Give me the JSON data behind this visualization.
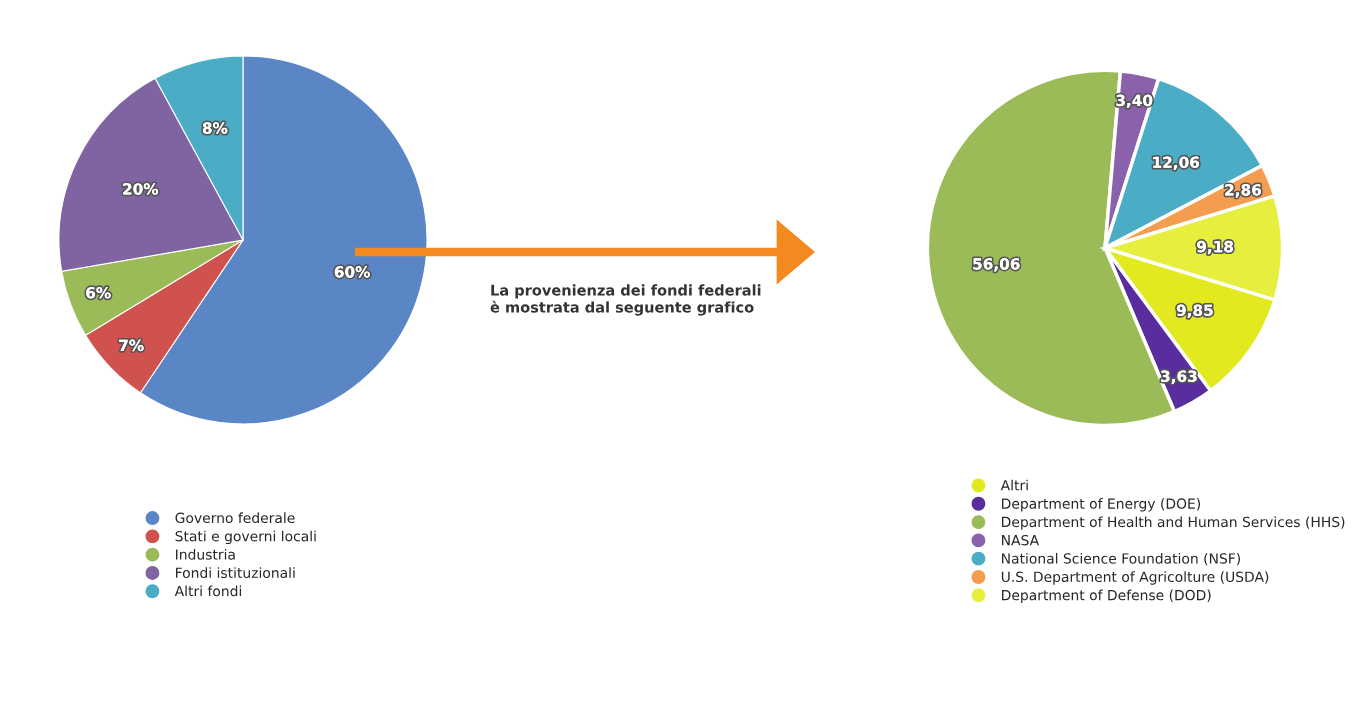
{
  "chart_data": [
    {
      "type": "pie",
      "categories": [
        "Governo federale",
        "Stati e governi locali",
        "Industria",
        "Fondi istituzionali",
        "Altri fondi"
      ],
      "values": [
        60,
        7,
        6,
        20,
        8
      ],
      "value_labels": [
        "60%",
        "7%",
        "6%",
        "20%",
        "8%"
      ],
      "colors": [
        "#5b86c5",
        "#d0524e",
        "#9bbb59",
        "#8064a2",
        "#4bacc6"
      ],
      "legend": "bottom",
      "annotations": [
        "La provenienza dei fondi federali\nè mostrata dal seguente grafico"
      ]
    },
    {
      "type": "pie",
      "categories": [
        "Altri",
        "Department of Energy (DOE)",
        "Department of Health and Human Services (HHS)",
        "NASA",
        "National Science Foundation (NSF)",
        "U.S. Department of Agricolture (USDA)",
        "Department of Defense (DOD)"
      ],
      "values": [
        9.85,
        3.63,
        56.06,
        3.4,
        12.06,
        2.86,
        9.18
      ],
      "value_labels": [
        "9,85",
        "3,63",
        "56,06",
        "3,40",
        "12,06",
        "2,86",
        "9,18"
      ],
      "colors": [
        "#e2ea1f",
        "#5a2d9e",
        "#9bbb59",
        "#8a62ac",
        "#4bacc6",
        "#f59d4e",
        "#e6ee3e"
      ],
      "legend": "bottom"
    }
  ]
}
